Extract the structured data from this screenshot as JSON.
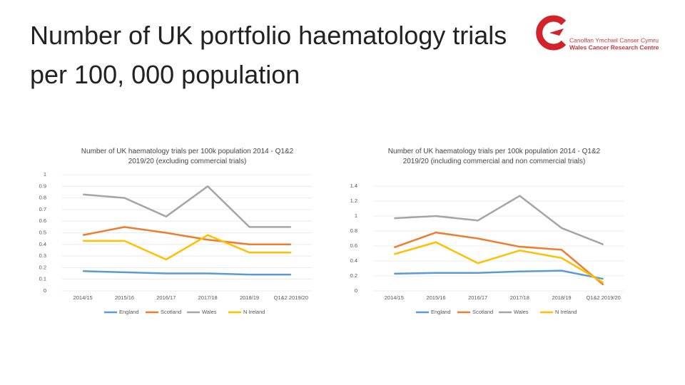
{
  "title": "Number of UK portfolio haematology trials per 100, 000 population",
  "logo": {
    "line1": "Canolfan Ymchwil Canser Cymru",
    "line2": "Wales Cancer Research Centre"
  },
  "chart_data": [
    {
      "type": "line",
      "title": "Number of UK haematology trials per 100k population 2014 - Q1&2 2019/20 (excluding commercial trials)",
      "categories": [
        "2014/15",
        "2015/16",
        "2016/17",
        "2017/18",
        "2018/19",
        "Q1&2 2019/20"
      ],
      "ylim": [
        0,
        1
      ],
      "yticks": [
        0,
        0.1,
        0.2,
        0.3,
        0.4,
        0.5,
        0.6,
        0.7,
        0.8,
        0.9,
        1
      ],
      "legend": "bottom",
      "series": [
        {
          "name": "England",
          "color": "#5b9bd5",
          "values": [
            0.17,
            0.16,
            0.15,
            0.15,
            0.14,
            0.14
          ]
        },
        {
          "name": "Scotland",
          "color": "#ed7d31",
          "values": [
            0.48,
            0.55,
            0.5,
            0.44,
            0.4,
            0.4
          ]
        },
        {
          "name": "Wales",
          "color": "#a5a5a5",
          "values": [
            0.83,
            0.8,
            0.64,
            0.9,
            0.55,
            0.55
          ]
        },
        {
          "name": "N Ireland",
          "color": "#ffc000",
          "values": [
            0.43,
            0.43,
            0.27,
            0.48,
            0.33,
            0.33
          ]
        }
      ]
    },
    {
      "type": "line",
      "title": "Number of UK haematology trials per 100k population 2014 - Q1&2 2019/20 (including commercial and non commercial trials)",
      "categories": [
        "2014/15",
        "2015/16",
        "2016/17",
        "2017/18",
        "2018/19",
        "Q1&2 2019/20"
      ],
      "ylim": [
        0,
        1.4
      ],
      "yticks": [
        0,
        0.2,
        0.4,
        0.6,
        0.8,
        1,
        1.2,
        1.4
      ],
      "legend": "bottom",
      "series": [
        {
          "name": "England",
          "color": "#5b9bd5",
          "values": [
            0.23,
            0.24,
            0.24,
            0.26,
            0.27,
            0.16
          ]
        },
        {
          "name": "Scotland",
          "color": "#ed7d31",
          "values": [
            0.58,
            0.78,
            0.7,
            0.59,
            0.55,
            0.08
          ]
        },
        {
          "name": "Wales",
          "color": "#a5a5a5",
          "values": [
            0.97,
            1,
            0.94,
            1.27,
            0.84,
            0.62
          ]
        },
        {
          "name": "N Ireland",
          "color": "#ffc000",
          "values": [
            0.49,
            0.65,
            0.37,
            0.54,
            0.44,
            0.11
          ]
        }
      ]
    }
  ]
}
